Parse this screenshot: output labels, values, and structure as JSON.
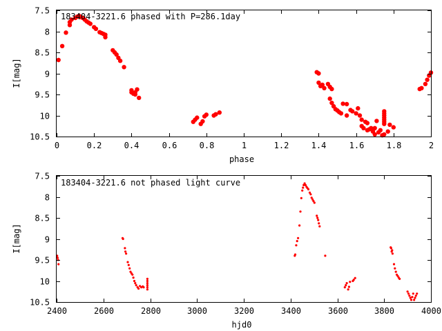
{
  "chart_data": [
    {
      "type": "scatter",
      "title": "183404-3221.6 phased with P=286.1day",
      "xlabel": "phase",
      "ylabel": "I[mag]",
      "xlim": [
        0,
        2
      ],
      "ylim": [
        10.5,
        7.5
      ],
      "y_inverted": true,
      "grid": false,
      "xticks": [
        0,
        0.2,
        0.4,
        0.6,
        0.8,
        1,
        1.2,
        1.4,
        1.6,
        1.8,
        2
      ],
      "xtick_labels": [
        "0",
        "0.2",
        "0.4",
        "0.6",
        "0.8",
        "1",
        "1.2",
        "1.4",
        "1.6",
        "1.8",
        "2"
      ],
      "yticks": [
        7.5,
        8,
        8.5,
        9,
        9.5,
        10,
        10.5
      ],
      "ytick_labels": [
        "7.5",
        "8",
        "8.5",
        "9",
        "9.5",
        "10",
        "10.5"
      ],
      "marker_color": "#ff0000",
      "points": [
        [
          0.01,
          8.68
        ],
        [
          0.03,
          8.35
        ],
        [
          0.05,
          8.03
        ],
        [
          0.07,
          7.85
        ],
        [
          0.07,
          7.78
        ],
        [
          0.08,
          7.72
        ],
        [
          0.1,
          7.68
        ],
        [
          0.11,
          7.65
        ],
        [
          0.12,
          7.63
        ],
        [
          0.13,
          7.66
        ],
        [
          0.14,
          7.68
        ],
        [
          0.15,
          7.72
        ],
        [
          0.16,
          7.76
        ],
        [
          0.17,
          7.79
        ],
        [
          0.18,
          7.82
        ],
        [
          0.2,
          7.9
        ],
        [
          0.21,
          7.94
        ],
        [
          0.23,
          8.02
        ],
        [
          0.24,
          8.04
        ],
        [
          0.25,
          8.06
        ],
        [
          0.26,
          8.08
        ],
        [
          0.26,
          8.14
        ],
        [
          0.3,
          8.45
        ],
        [
          0.31,
          8.5
        ],
        [
          0.32,
          8.55
        ],
        [
          0.33,
          8.63
        ],
        [
          0.34,
          8.7
        ],
        [
          0.36,
          8.85
        ],
        [
          0.4,
          9.4
        ],
        [
          0.4,
          9.45
        ],
        [
          0.41,
          9.48
        ],
        [
          0.42,
          9.5
        ],
        [
          0.42,
          9.45
        ],
        [
          0.43,
          9.38
        ],
        [
          0.44,
          9.58
        ],
        [
          0.73,
          10.15
        ],
        [
          0.74,
          10.1
        ],
        [
          0.75,
          10.05
        ],
        [
          0.77,
          10.2
        ],
        [
          0.78,
          10.14
        ],
        [
          0.79,
          10.02
        ],
        [
          0.8,
          9.98
        ],
        [
          0.84,
          10.0
        ],
        [
          0.85,
          9.97
        ],
        [
          0.87,
          9.93
        ],
        [
          1.39,
          8.97
        ],
        [
          1.4,
          9.0
        ],
        [
          1.4,
          9.22
        ],
        [
          1.41,
          9.3
        ],
        [
          1.42,
          9.27
        ],
        [
          1.43,
          9.35
        ],
        [
          1.45,
          9.25
        ],
        [
          1.46,
          9.32
        ],
        [
          1.47,
          9.37
        ],
        [
          1.46,
          9.6
        ],
        [
          1.47,
          9.7
        ],
        [
          1.48,
          9.78
        ],
        [
          1.49,
          9.85
        ],
        [
          1.5,
          9.88
        ],
        [
          1.51,
          9.92
        ],
        [
          1.52,
          9.95
        ],
        [
          1.53,
          9.72
        ],
        [
          1.55,
          9.73
        ],
        [
          1.55,
          10.0
        ],
        [
          1.57,
          9.87
        ],
        [
          1.58,
          9.9
        ],
        [
          1.6,
          9.95
        ],
        [
          1.61,
          9.83
        ],
        [
          1.62,
          10.0
        ],
        [
          1.63,
          10.1
        ],
        [
          1.63,
          10.25
        ],
        [
          1.64,
          10.3
        ],
        [
          1.65,
          10.15
        ],
        [
          1.66,
          10.18
        ],
        [
          1.66,
          10.35
        ],
        [
          1.67,
          10.33
        ],
        [
          1.68,
          10.3
        ],
        [
          1.69,
          10.38
        ],
        [
          1.7,
          10.45
        ],
        [
          1.7,
          10.3
        ],
        [
          1.71,
          10.13
        ],
        [
          1.72,
          10.4
        ],
        [
          1.73,
          10.35
        ],
        [
          1.74,
          10.47
        ],
        [
          1.75,
          9.9
        ],
        [
          1.75,
          9.95
        ],
        [
          1.75,
          10.0
        ],
        [
          1.75,
          10.05
        ],
        [
          1.75,
          10.1
        ],
        [
          1.75,
          10.15
        ],
        [
          1.75,
          10.2
        ],
        [
          1.75,
          10.45
        ],
        [
          1.77,
          10.38
        ],
        [
          1.78,
          10.22
        ],
        [
          1.8,
          10.28
        ],
        [
          1.94,
          9.37
        ],
        [
          1.95,
          9.35
        ],
        [
          1.97,
          9.25
        ],
        [
          1.98,
          9.15
        ],
        [
          1.99,
          9.05
        ],
        [
          2.0,
          8.98
        ]
      ]
    },
    {
      "type": "scatter",
      "title": "183404-3221.6 not phased light curve",
      "xlabel": "hjd0",
      "ylabel": "I[mag]",
      "xlim": [
        2400,
        4000
      ],
      "ylim": [
        10.5,
        7.5
      ],
      "y_inverted": true,
      "grid": false,
      "xticks": [
        2400,
        2600,
        2800,
        3000,
        3200,
        3400,
        3600,
        3800,
        4000
      ],
      "xtick_labels": [
        "2400",
        "2600",
        "2800",
        "3000",
        "3200",
        "3400",
        "3600",
        "3800",
        "4000"
      ],
      "yticks": [
        7.5,
        8,
        8.5,
        9,
        9.5,
        10,
        10.5
      ],
      "ytick_labels": [
        "7.5",
        "8",
        "8.5",
        "9",
        "9.5",
        "10",
        "10.5"
      ],
      "marker_color": "#ff0000",
      "points": [
        [
          2402,
          9.4
        ],
        [
          2404,
          9.45
        ],
        [
          2406,
          9.5
        ],
        [
          2408,
          9.6
        ],
        [
          2682,
          8.98
        ],
        [
          2684,
          9.0
        ],
        [
          2692,
          9.22
        ],
        [
          2694,
          9.3
        ],
        [
          2697,
          9.35
        ],
        [
          2704,
          9.55
        ],
        [
          2708,
          9.62
        ],
        [
          2712,
          9.7
        ],
        [
          2716,
          9.78
        ],
        [
          2720,
          9.82
        ],
        [
          2724,
          9.85
        ],
        [
          2728,
          9.92
        ],
        [
          2732,
          10.0
        ],
        [
          2736,
          10.05
        ],
        [
          2740,
          10.1
        ],
        [
          2746,
          10.15
        ],
        [
          2750,
          10.18
        ],
        [
          2756,
          10.12
        ],
        [
          2762,
          10.15
        ],
        [
          2768,
          10.13
        ],
        [
          2772,
          10.15
        ],
        [
          2788,
          9.95
        ],
        [
          2788,
          10.0
        ],
        [
          2788,
          10.05
        ],
        [
          2788,
          10.1
        ],
        [
          2788,
          10.15
        ],
        [
          2788,
          10.2
        ],
        [
          3418,
          9.4
        ],
        [
          3420,
          9.37
        ],
        [
          3424,
          9.15
        ],
        [
          3428,
          9.05
        ],
        [
          3432,
          8.98
        ],
        [
          3438,
          8.68
        ],
        [
          3442,
          8.35
        ],
        [
          3446,
          8.03
        ],
        [
          3450,
          7.85
        ],
        [
          3453,
          7.78
        ],
        [
          3456,
          7.72
        ],
        [
          3460,
          7.68
        ],
        [
          3464,
          7.72
        ],
        [
          3468,
          7.76
        ],
        [
          3472,
          7.79
        ],
        [
          3476,
          7.82
        ],
        [
          3482,
          7.9
        ],
        [
          3486,
          7.94
        ],
        [
          3490,
          8.02
        ],
        [
          3494,
          8.06
        ],
        [
          3498,
          8.1
        ],
        [
          3502,
          8.14
        ],
        [
          3512,
          8.45
        ],
        [
          3515,
          8.5
        ],
        [
          3518,
          8.55
        ],
        [
          3521,
          8.63
        ],
        [
          3524,
          8.7
        ],
        [
          3548,
          9.4
        ],
        [
          3632,
          10.15
        ],
        [
          3636,
          10.1
        ],
        [
          3640,
          10.05
        ],
        [
          3646,
          10.2
        ],
        [
          3650,
          10.14
        ],
        [
          3654,
          10.02
        ],
        [
          3666,
          10.0
        ],
        [
          3670,
          9.97
        ],
        [
          3676,
          9.93
        ],
        [
          3828,
          9.2
        ],
        [
          3830,
          9.22
        ],
        [
          3832,
          9.3
        ],
        [
          3834,
          9.27
        ],
        [
          3836,
          9.35
        ],
        [
          3842,
          9.6
        ],
        [
          3846,
          9.7
        ],
        [
          3850,
          9.78
        ],
        [
          3854,
          9.85
        ],
        [
          3858,
          9.88
        ],
        [
          3862,
          9.92
        ],
        [
          3866,
          9.95
        ],
        [
          3900,
          10.25
        ],
        [
          3904,
          10.3
        ],
        [
          3908,
          10.35
        ],
        [
          3912,
          10.4
        ],
        [
          3916,
          10.45
        ],
        [
          3920,
          10.38
        ],
        [
          3924,
          10.3
        ],
        [
          3928,
          10.45
        ],
        [
          3932,
          10.4
        ],
        [
          3936,
          10.35
        ],
        [
          3940,
          10.3
        ]
      ]
    }
  ]
}
